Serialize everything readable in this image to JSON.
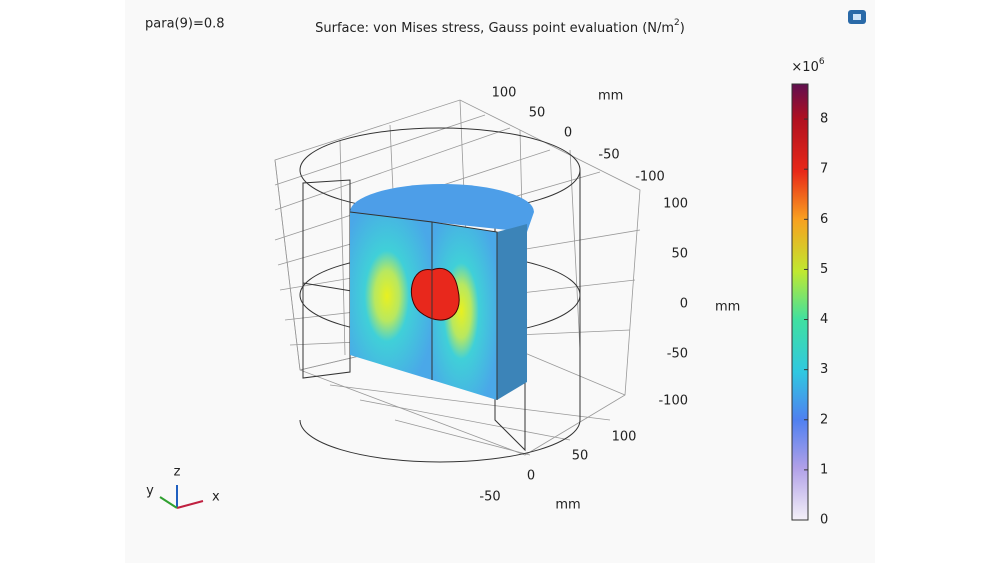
{
  "header": {
    "parameter": "para(9)=0.8",
    "title": "Surface: von Mises stress, Gauss point evaluation (N/m",
    "title_superscript": "2",
    "title_end": ")"
  },
  "axes": {
    "y": {
      "ticks": [
        100,
        50,
        0,
        -50,
        -100
      ],
      "unit": "mm"
    },
    "z": {
      "ticks": [
        100,
        50,
        0,
        -50,
        -100
      ],
      "unit": "mm"
    },
    "x": {
      "ticks": [
        100,
        50,
        0,
        -50
      ],
      "unit": "mm"
    }
  },
  "colorbar": {
    "multiplier": "×10",
    "exponent": "6",
    "range": [
      0,
      8.7
    ],
    "ticks": [
      0,
      1,
      2,
      3,
      4,
      5,
      6,
      7,
      8
    ]
  },
  "triad": {
    "x": "x",
    "y": "y",
    "z": "z"
  }
}
